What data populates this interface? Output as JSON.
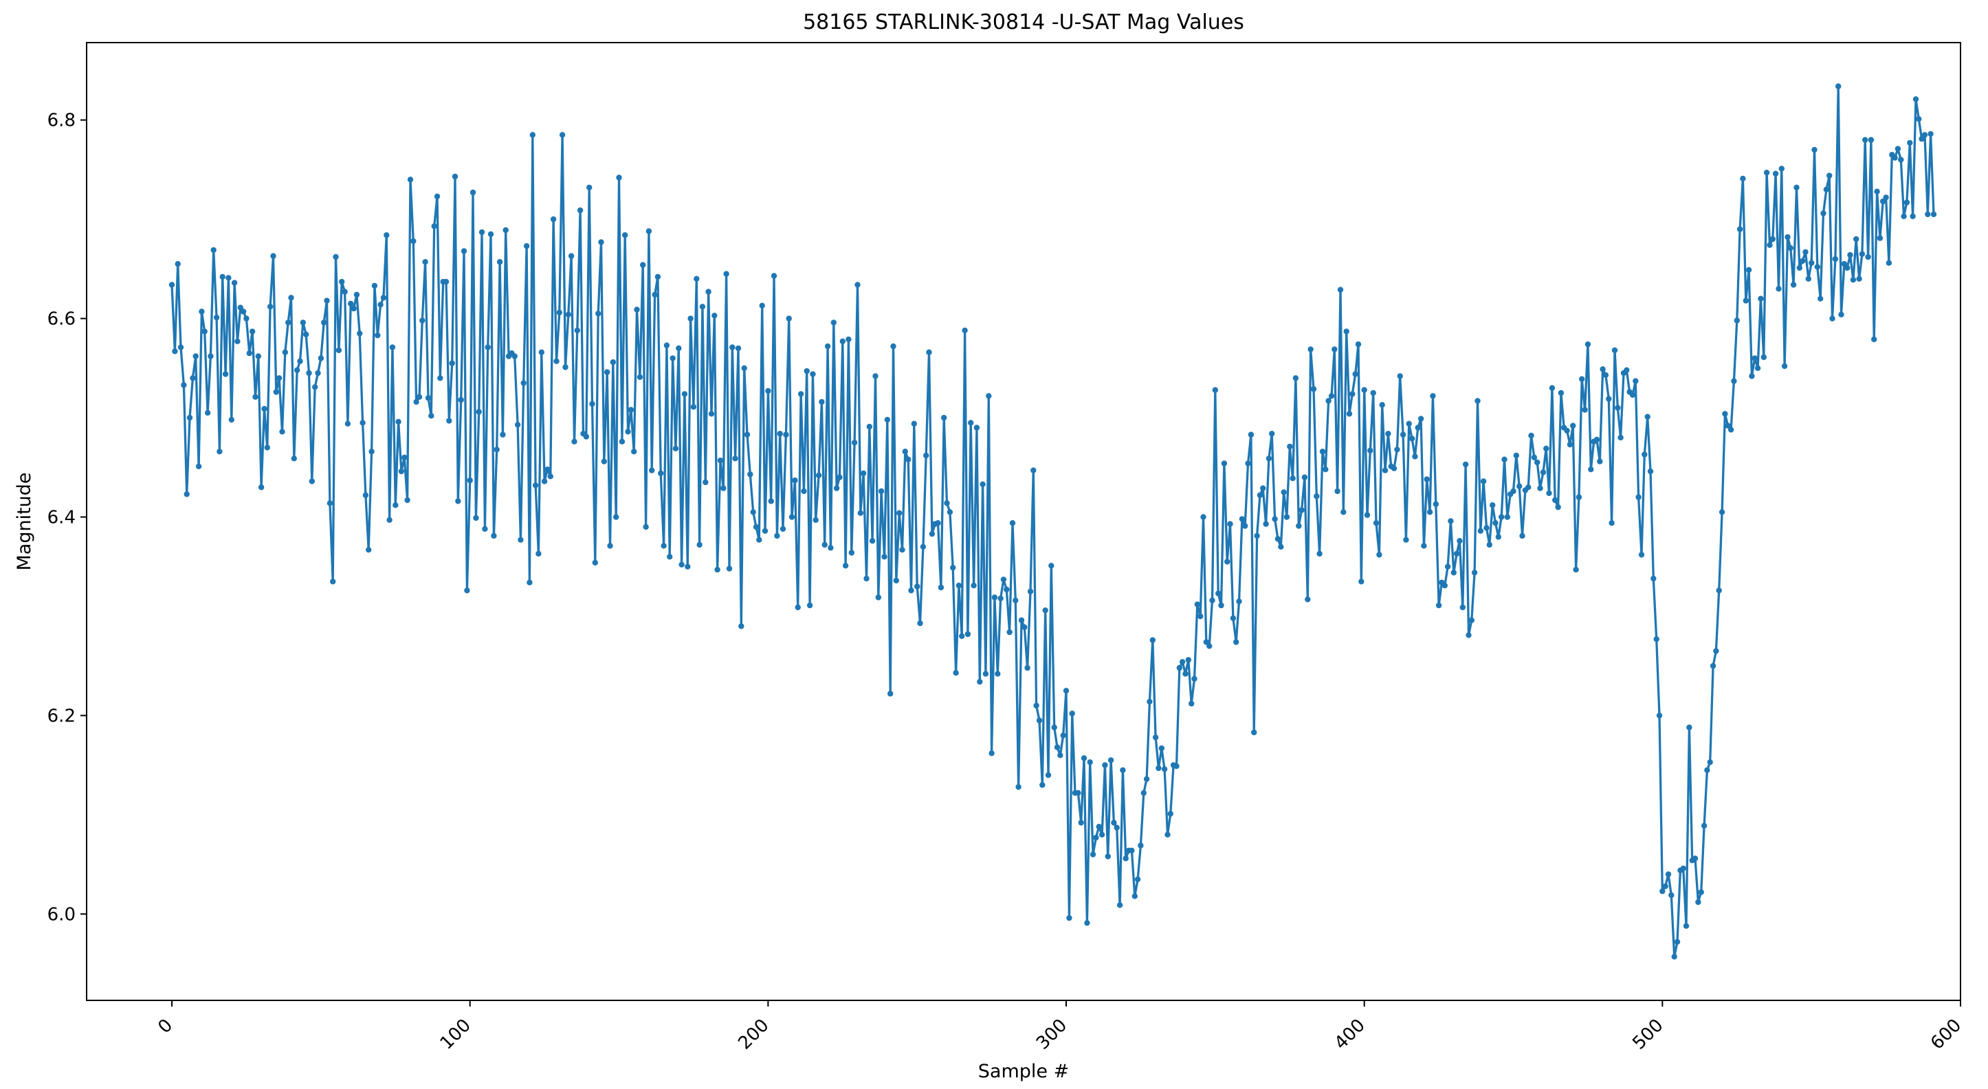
{
  "chart_data": {
    "type": "line",
    "title": "58165 STARLINK-30814 -U-SAT Mag Values",
    "xlabel": "Sample #",
    "ylabel": "Magnitude",
    "xlim": [
      -28.6,
      600
    ],
    "ylim": [
      5.913,
      6.878
    ],
    "x_ticks": [
      0,
      100,
      200,
      300,
      400,
      500,
      600
    ],
    "y_ticks": [
      6.0,
      6.2,
      6.4,
      6.6,
      6.8
    ],
    "x_tick_labels": [
      "0",
      "100",
      "200",
      "300",
      "400",
      "500",
      "600"
    ],
    "y_tick_labels": [
      "6.0",
      "6.2",
      "6.4",
      "6.6",
      "6.8"
    ],
    "grid": false,
    "marker": "point",
    "colors": {
      "line": "#1f77b4",
      "axes": "#000000",
      "background": "#ffffff"
    },
    "series": [
      {
        "values": [
          6.634,
          6.567,
          6.655,
          6.571,
          6.533,
          6.423,
          6.5,
          6.54,
          6.562,
          6.451,
          6.607,
          6.587,
          6.505,
          6.562,
          6.669,
          6.601,
          6.466,
          6.642,
          6.544,
          6.641,
          6.498,
          6.636,
          6.577,
          6.611,
          6.607,
          6.6,
          6.565,
          6.587,
          6.521,
          6.562,
          6.43,
          6.509,
          6.47,
          6.612,
          6.663,
          6.526,
          6.54,
          6.486,
          6.566,
          6.596,
          6.621,
          6.459,
          6.548,
          6.557,
          6.596,
          6.584,
          6.545,
          6.436,
          6.531,
          6.545,
          6.56,
          6.596,
          6.618,
          6.414,
          6.335,
          6.662,
          6.568,
          6.637,
          6.627,
          6.494,
          6.615,
          6.61,
          6.624,
          6.585,
          6.495,
          6.422,
          6.367,
          6.466,
          6.633,
          6.583,
          6.614,
          6.621,
          6.684,
          6.397,
          6.571,
          6.412,
          6.496,
          6.446,
          6.46,
          6.417,
          6.74,
          6.678,
          6.516,
          6.521,
          6.598,
          6.657,
          6.52,
          6.502,
          6.693,
          6.723,
          6.54,
          6.637,
          6.637,
          6.497,
          6.555,
          6.743,
          6.416,
          6.518,
          6.668,
          6.326,
          6.437,
          6.727,
          6.399,
          6.506,
          6.687,
          6.388,
          6.571,
          6.685,
          6.381,
          6.468,
          6.657,
          6.483,
          6.689,
          6.562,
          6.565,
          6.562,
          6.493,
          6.377,
          6.535,
          6.673,
          6.334,
          6.785,
          6.432,
          6.363,
          6.566,
          6.436,
          6.448,
          6.441,
          6.7,
          6.557,
          6.606,
          6.785,
          6.551,
          6.604,
          6.663,
          6.476,
          6.588,
          6.709,
          6.484,
          6.481,
          6.732,
          6.514,
          6.354,
          6.605,
          6.677,
          6.456,
          6.546,
          6.371,
          6.556,
          6.4,
          6.742,
          6.476,
          6.684,
          6.486,
          6.508,
          6.466,
          6.609,
          6.541,
          6.654,
          6.39,
          6.688,
          6.447,
          6.624,
          6.642,
          6.444,
          6.371,
          6.573,
          6.36,
          6.56,
          6.469,
          6.57,
          6.352,
          6.524,
          6.35,
          6.6,
          6.511,
          6.64,
          6.372,
          6.612,
          6.435,
          6.627,
          6.504,
          6.603,
          6.347,
          6.457,
          6.429,
          6.645,
          6.348,
          6.571,
          6.459,
          6.57,
          6.29,
          6.55,
          6.483,
          6.443,
          6.405,
          6.39,
          6.377,
          6.613,
          6.386,
          6.527,
          6.416,
          6.643,
          6.381,
          6.484,
          6.388,
          6.483,
          6.6,
          6.4,
          6.437,
          6.309,
          6.524,
          6.426,
          6.547,
          6.311,
          6.544,
          6.397,
          6.442,
          6.516,
          6.372,
          6.572,
          6.369,
          6.596,
          6.429,
          6.44,
          6.577,
          6.351,
          6.579,
          6.364,
          6.475,
          6.634,
          6.404,
          6.444,
          6.338,
          6.491,
          6.376,
          6.542,
          6.319,
          6.426,
          6.36,
          6.498,
          6.222,
          6.572,
          6.336,
          6.404,
          6.367,
          6.466,
          6.458,
          6.326,
          6.494,
          6.33,
          6.293,
          6.37,
          6.462,
          6.566,
          6.383,
          6.393,
          6.394,
          6.329,
          6.5,
          6.414,
          6.405,
          6.349,
          6.243,
          6.331,
          6.28,
          6.588,
          6.282,
          6.495,
          6.331,
          6.49,
          6.234,
          6.433,
          6.242,
          6.522,
          6.162,
          6.319,
          6.242,
          6.318,
          6.337,
          6.327,
          6.284,
          6.394,
          6.316,
          6.128,
          6.296,
          6.289,
          6.248,
          6.325,
          6.447,
          6.21,
          6.195,
          6.13,
          6.306,
          6.14,
          6.351,
          6.188,
          6.168,
          6.16,
          6.18,
          6.225,
          5.996,
          6.202,
          6.122,
          6.122,
          6.092,
          6.157,
          5.991,
          6.153,
          6.06,
          6.077,
          6.088,
          6.08,
          6.15,
          6.058,
          6.155,
          6.092,
          6.087,
          6.009,
          6.145,
          6.056,
          6.064,
          6.064,
          6.018,
          6.035,
          6.069,
          6.122,
          6.136,
          6.214,
          6.276,
          6.178,
          6.147,
          6.167,
          6.146,
          6.08,
          6.101,
          6.15,
          6.149,
          6.248,
          6.254,
          6.242,
          6.256,
          6.212,
          6.237,
          6.312,
          6.3,
          6.4,
          6.274,
          6.27,
          6.316,
          6.528,
          6.323,
          6.311,
          6.454,
          6.355,
          6.393,
          6.298,
          6.274,
          6.315,
          6.398,
          6.391,
          6.454,
          6.483,
          6.183,
          6.381,
          6.422,
          6.429,
          6.393,
          6.459,
          6.484,
          6.398,
          6.378,
          6.37,
          6.425,
          6.4,
          6.471,
          6.439,
          6.54,
          6.391,
          6.407,
          6.44,
          6.317,
          6.569,
          6.529,
          6.421,
          6.363,
          6.466,
          6.448,
          6.517,
          6.522,
          6.569,
          6.426,
          6.629,
          6.405,
          6.587,
          6.504,
          6.524,
          6.544,
          6.574,
          6.335,
          6.528,
          6.402,
          6.467,
          6.525,
          6.394,
          6.362,
          6.513,
          6.447,
          6.484,
          6.451,
          6.449,
          6.468,
          6.542,
          6.483,
          6.377,
          6.494,
          6.479,
          6.461,
          6.49,
          6.499,
          6.371,
          6.438,
          6.405,
          6.522,
          6.413,
          6.311,
          6.334,
          6.331,
          6.35,
          6.396,
          6.344,
          6.363,
          6.376,
          6.309,
          6.453,
          6.281,
          6.296,
          6.344,
          6.517,
          6.386,
          6.436,
          6.389,
          6.372,
          6.412,
          6.394,
          6.38,
          6.4,
          6.458,
          6.4,
          6.423,
          6.426,
          6.462,
          6.431,
          6.381,
          6.427,
          6.43,
          6.482,
          6.46,
          6.455,
          6.429,
          6.445,
          6.469,
          6.424,
          6.53,
          6.417,
          6.41,
          6.525,
          6.49,
          6.487,
          6.473,
          6.492,
          6.347,
          6.42,
          6.539,
          6.508,
          6.574,
          6.448,
          6.476,
          6.478,
          6.456,
          6.549,
          6.543,
          6.519,
          6.394,
          6.568,
          6.51,
          6.48,
          6.545,
          6.548,
          6.526,
          6.523,
          6.537,
          6.42,
          6.362,
          6.463,
          6.501,
          6.446,
          6.338,
          6.277,
          6.2,
          6.023,
          6.028,
          6.04,
          6.019,
          5.957,
          5.972,
          6.044,
          6.046,
          5.988,
          6.188,
          6.054,
          6.056,
          6.012,
          6.022,
          6.089,
          6.145,
          6.153,
          6.25,
          6.265,
          6.326,
          6.405,
          6.504,
          6.492,
          6.488,
          6.537,
          6.598,
          6.69,
          6.741,
          6.618,
          6.649,
          6.542,
          6.56,
          6.55,
          6.62,
          6.561,
          6.747,
          6.674,
          6.68,
          6.746,
          6.63,
          6.751,
          6.552,
          6.682,
          6.671,
          6.634,
          6.732,
          6.651,
          6.658,
          6.667,
          6.64,
          6.656,
          6.77,
          6.652,
          6.62,
          6.706,
          6.73,
          6.744,
          6.6,
          6.66,
          6.834,
          6.604,
          6.655,
          6.651,
          6.664,
          6.639,
          6.68,
          6.64,
          6.665,
          6.78,
          6.662,
          6.78,
          6.579,
          6.728,
          6.681,
          6.718,
          6.722,
          6.656,
          6.765,
          6.762,
          6.771,
          6.76,
          6.703,
          6.717,
          6.777,
          6.703,
          6.821,
          6.801,
          6.781,
          6.785,
          6.705,
          6.786,
          6.705
        ]
      }
    ]
  }
}
